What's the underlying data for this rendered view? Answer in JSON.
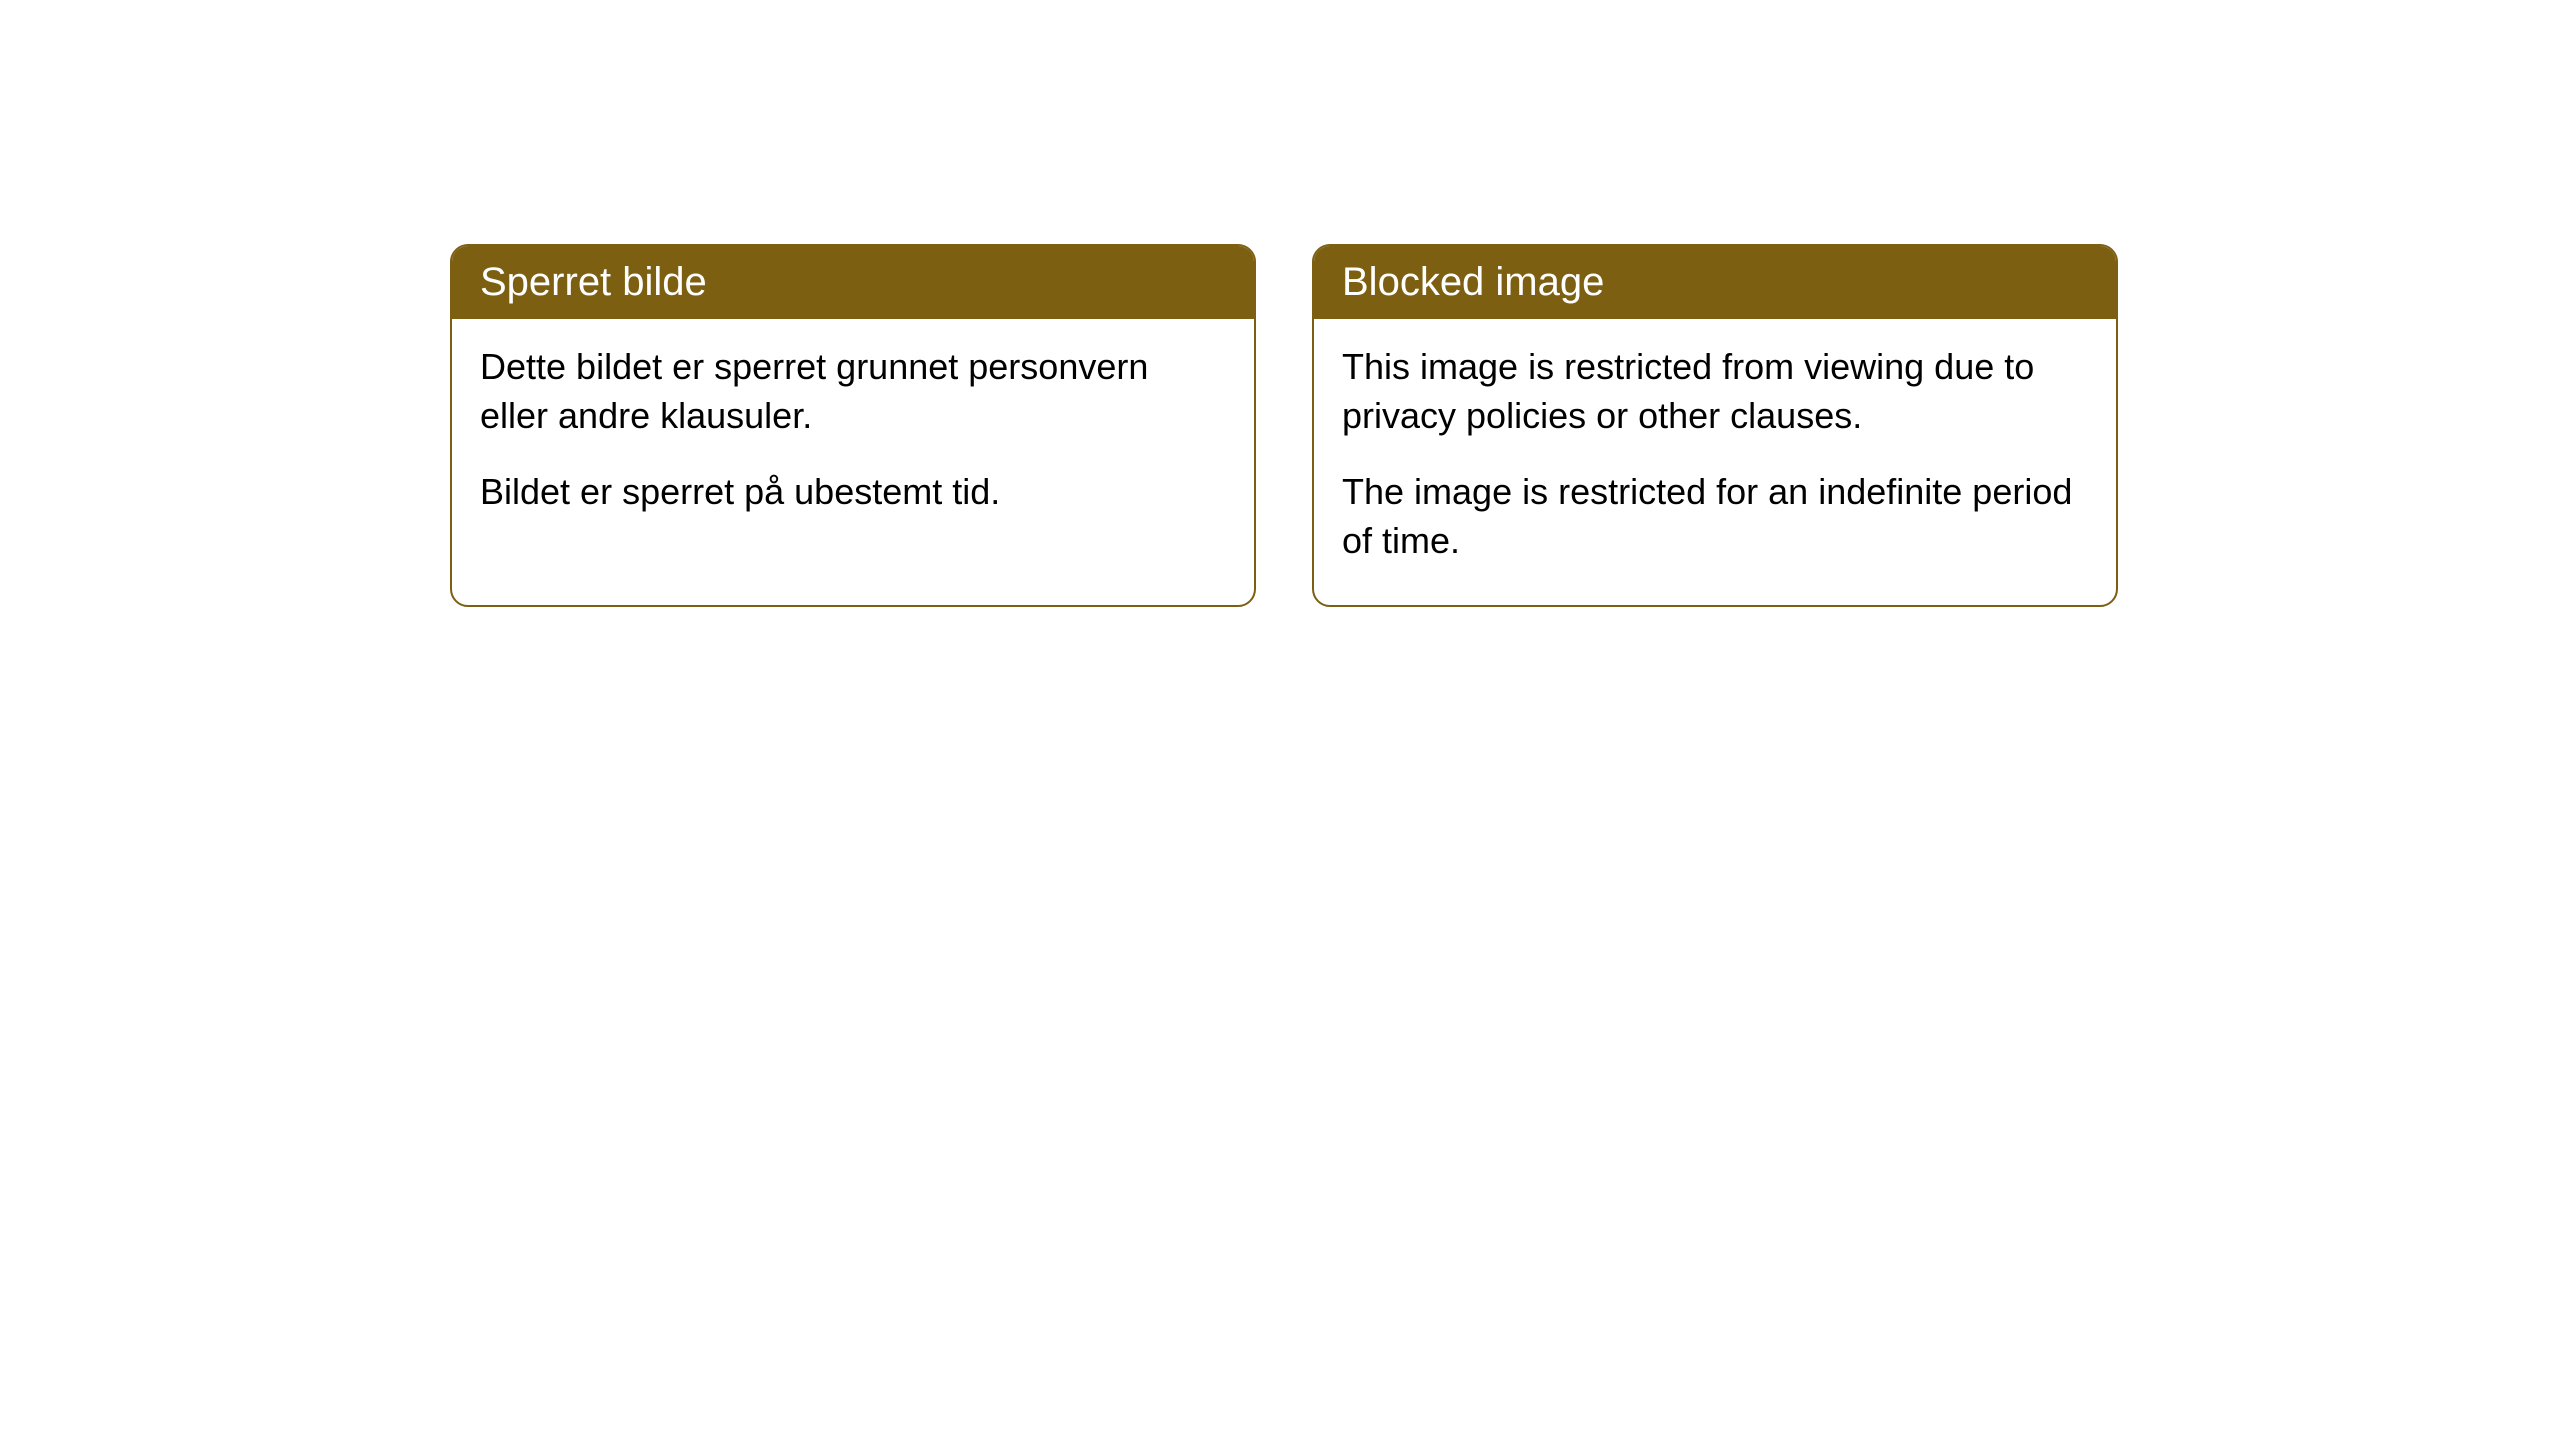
{
  "cards": [
    {
      "title": "Sperret bilde",
      "paragraph1": "Dette bildet er sperret grunnet personvern eller andre klausuler.",
      "paragraph2": "Bildet er sperret på ubestemt tid."
    },
    {
      "title": "Blocked image",
      "paragraph1": "This image is restricted from viewing due to privacy policies or other clauses.",
      "paragraph2": "The image is restricted for an indefinite period of time."
    }
  ],
  "styling": {
    "header_background": "#7d5f12",
    "header_text_color": "#ffffff",
    "card_border_color": "#7d5f12",
    "card_background": "#ffffff",
    "body_text_color": "#000000",
    "border_radius": 18,
    "header_fontsize": 40,
    "body_fontsize": 36
  }
}
